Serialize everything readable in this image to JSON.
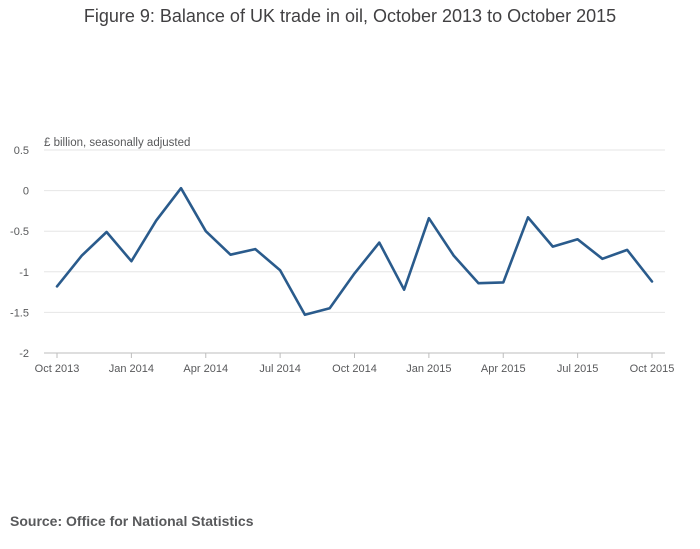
{
  "title": "Figure 9: Balance of UK trade in oil, October 2013 to October 2015",
  "source": "Source: Office for National Statistics",
  "colors": {
    "series": "#2a5b8c",
    "grid": "#e6e6e6",
    "axis": "#bdbdbd",
    "text": "#58595b"
  },
  "chart_data": {
    "type": "line",
    "title": "Figure 9: Balance of UK trade in oil, October 2013 to October 2015",
    "ylabel": "£ billion, seasonally adjusted",
    "xlabel": "",
    "ylim": [
      -2,
      0.5
    ],
    "yticks": [
      0.5,
      0,
      -0.5,
      -1,
      -1.5,
      -2
    ],
    "ytick_labels": [
      "0.5",
      "0",
      "-0.5",
      "-1",
      "-1.5",
      "-2"
    ],
    "x": [
      "Oct 2013",
      "Nov 2013",
      "Dec 2013",
      "Jan 2014",
      "Feb 2014",
      "Mar 2014",
      "Apr 2014",
      "May 2014",
      "Jun 2014",
      "Jul 2014",
      "Aug 2014",
      "Sep 2014",
      "Oct 2014",
      "Nov 2014",
      "Dec 2014",
      "Jan 2015",
      "Feb 2015",
      "Mar 2015",
      "Apr 2015",
      "May 2015",
      "Jun 2015",
      "Jul 2015",
      "Aug 2015",
      "Sep 2015",
      "Oct 2015"
    ],
    "xtick_labels": [
      "Oct 2013",
      "Jan 2014",
      "Apr 2014",
      "Jul 2014",
      "Oct 2014",
      "Jan 2015",
      "Apr 2015",
      "Jul 2015",
      "Oct 2015"
    ],
    "xtick_months": [
      "Oct 2013",
      "Jan 2014",
      "Apr 2014",
      "Jul 2014",
      "Oct 2014",
      "Jan 2015",
      "Apr 2015",
      "Jul 2015",
      "Oct 2015"
    ],
    "grid": true,
    "series": [
      {
        "values": [
          -1.18,
          -0.8,
          -0.51,
          -0.87,
          -0.37,
          0.03,
          -0.5,
          -0.79,
          -0.72,
          -0.98,
          -1.53,
          -1.45,
          -1.02,
          -0.64,
          -1.22,
          -0.34,
          -0.8,
          -1.14,
          -1.13,
          -0.33,
          -0.69,
          -0.6,
          -0.84,
          -0.73,
          -1.12
        ]
      }
    ]
  }
}
